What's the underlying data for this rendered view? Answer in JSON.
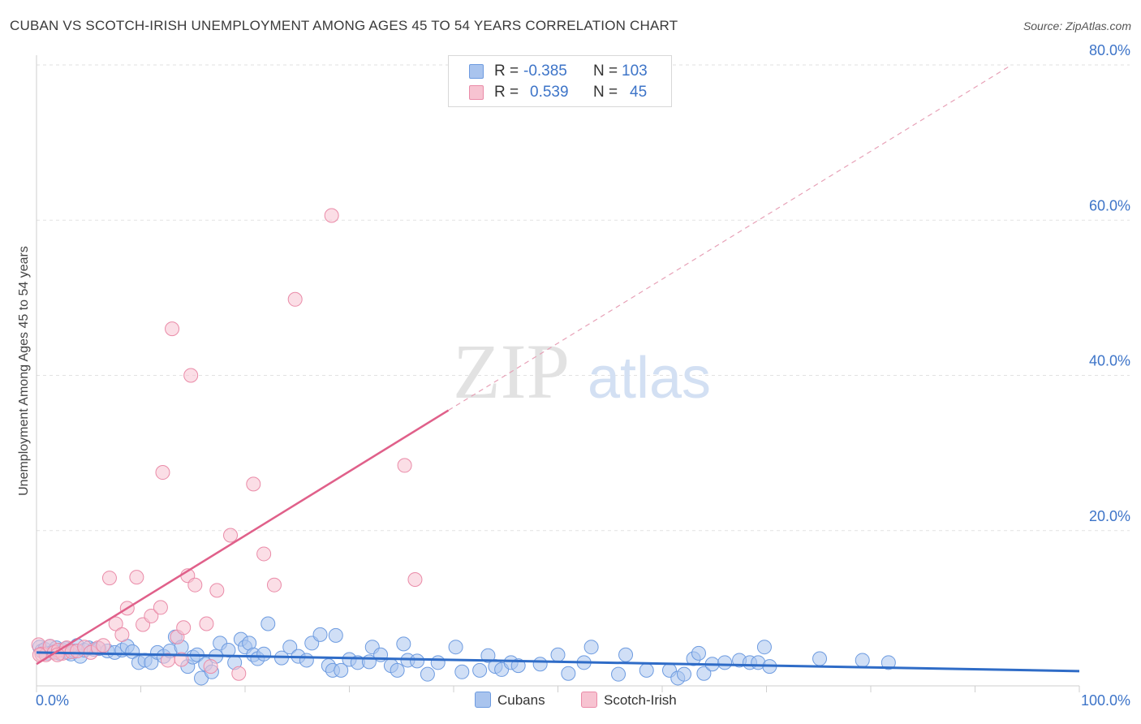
{
  "header": {
    "title": "CUBAN VS SCOTCH-IRISH UNEMPLOYMENT AMONG AGES 45 TO 54 YEARS CORRELATION CHART",
    "source": "Source: ZipAtlas.com"
  },
  "legend": {
    "rows": [
      {
        "r_label": "R =",
        "r_value": "-0.385",
        "n_label": "N =",
        "n_value": "103"
      },
      {
        "r_label": "R =",
        "r_value": "0.539",
        "n_label": "N =",
        "n_value": "45"
      }
    ],
    "bottom": [
      {
        "label": "Cubans"
      },
      {
        "label": "Scotch-Irish"
      }
    ]
  },
  "watermark": {
    "zip": "ZIP",
    "atlas": "atlas"
  },
  "colors": {
    "blue_fill": "#a9c4ee",
    "blue_stroke": "#6d9be0",
    "blue_line": "#2f6cc7",
    "pink_fill": "#f7c3d1",
    "pink_stroke": "#ea8ba8",
    "pink_line": "#e0608a",
    "axis_text": "#3d74c8"
  },
  "chart_data": {
    "type": "scatter",
    "title": "CUBAN VS SCOTCH-IRISH UNEMPLOYMENT AMONG AGES 45 TO 54 YEARS CORRELATION CHART",
    "xlabel": "",
    "ylabel": "Unemployment Among Ages 45 to 54 years",
    "xlim": [
      0,
      100
    ],
    "ylim": [
      0,
      80
    ],
    "x_tick_labels": [
      "0.0%",
      "100.0%"
    ],
    "y_ticks": [
      20,
      40,
      60,
      80
    ],
    "y_tick_labels": [
      "20.0%",
      "40.0%",
      "60.0%",
      "80.0%"
    ],
    "grid": true,
    "series": [
      {
        "name": "Cubans",
        "R": -0.385,
        "N": 103,
        "trend": {
          "x0": 0,
          "y0": 4.3,
          "x1": 100,
          "y1": 1.9
        },
        "points": [
          [
            0.3,
            5.0
          ],
          [
            0.5,
            4.5
          ],
          [
            0.8,
            4.7
          ],
          [
            1.0,
            4.2
          ],
          [
            1.3,
            5.1
          ],
          [
            1.6,
            4.4
          ],
          [
            1.9,
            4.9
          ],
          [
            2.2,
            4.2
          ],
          [
            2.5,
            4.6
          ],
          [
            2.8,
            4.8
          ],
          [
            3.0,
            4.3
          ],
          [
            3.3,
            4.1
          ],
          [
            3.6,
            4.5
          ],
          [
            3.9,
            5.2
          ],
          [
            4.2,
            3.8
          ],
          [
            4.6,
            4.6
          ],
          [
            5.0,
            4.9
          ],
          [
            5.5,
            4.7
          ],
          [
            6.0,
            4.8
          ],
          [
            6.8,
            4.5
          ],
          [
            7.5,
            4.3
          ],
          [
            8.2,
            4.6
          ],
          [
            8.7,
            5.1
          ],
          [
            9.2,
            4.4
          ],
          [
            9.8,
            3.0
          ],
          [
            10.4,
            3.3
          ],
          [
            11.0,
            3.0
          ],
          [
            11.6,
            4.3
          ],
          [
            12.2,
            3.8
          ],
          [
            12.8,
            4.5
          ],
          [
            13.3,
            6.3
          ],
          [
            13.9,
            5.0
          ],
          [
            14.5,
            2.5
          ],
          [
            15.0,
            3.7
          ],
          [
            15.4,
            4.0
          ],
          [
            15.8,
            1.0
          ],
          [
            16.2,
            2.8
          ],
          [
            16.8,
            1.8
          ],
          [
            17.2,
            3.8
          ],
          [
            17.6,
            5.5
          ],
          [
            18.4,
            4.6
          ],
          [
            19.0,
            3.0
          ],
          [
            19.6,
            6.0
          ],
          [
            20.0,
            5.0
          ],
          [
            20.4,
            5.5
          ],
          [
            20.8,
            4.0
          ],
          [
            21.2,
            3.5
          ],
          [
            21.8,
            4.1
          ],
          [
            22.2,
            8.0
          ],
          [
            23.5,
            3.6
          ],
          [
            24.3,
            5.0
          ],
          [
            25.1,
            3.8
          ],
          [
            25.9,
            3.3
          ],
          [
            26.4,
            5.5
          ],
          [
            27.2,
            6.6
          ],
          [
            28.0,
            2.6
          ],
          [
            28.4,
            2.0
          ],
          [
            28.7,
            6.5
          ],
          [
            29.2,
            2.0
          ],
          [
            30.0,
            3.4
          ],
          [
            30.8,
            3.0
          ],
          [
            31.9,
            3.1
          ],
          [
            32.2,
            5.0
          ],
          [
            33.0,
            4.0
          ],
          [
            34.0,
            2.6
          ],
          [
            34.6,
            2.0
          ],
          [
            35.2,
            5.4
          ],
          [
            35.6,
            3.3
          ],
          [
            36.5,
            3.2
          ],
          [
            37.5,
            1.5
          ],
          [
            38.5,
            3.0
          ],
          [
            40.2,
            5.0
          ],
          [
            40.8,
            1.8
          ],
          [
            42.5,
            2.0
          ],
          [
            43.3,
            3.9
          ],
          [
            44.0,
            2.5
          ],
          [
            44.6,
            2.1
          ],
          [
            45.5,
            3.0
          ],
          [
            46.2,
            2.6
          ],
          [
            48.3,
            2.8
          ],
          [
            50.0,
            4.0
          ],
          [
            51.0,
            1.6
          ],
          [
            52.5,
            3.0
          ],
          [
            53.2,
            5.0
          ],
          [
            55.8,
            1.5
          ],
          [
            56.5,
            4.0
          ],
          [
            58.5,
            2.0
          ],
          [
            60.7,
            2.0
          ],
          [
            61.5,
            1.0
          ],
          [
            62.1,
            1.5
          ],
          [
            63.0,
            3.5
          ],
          [
            63.5,
            4.2
          ],
          [
            64.0,
            1.6
          ],
          [
            64.8,
            2.8
          ],
          [
            66.0,
            3.0
          ],
          [
            67.4,
            3.3
          ],
          [
            68.4,
            3.0
          ],
          [
            69.2,
            3.0
          ],
          [
            69.8,
            5.0
          ],
          [
            70.3,
            2.5
          ],
          [
            75.1,
            3.5
          ],
          [
            79.2,
            3.3
          ],
          [
            81.7,
            3.0
          ]
        ]
      },
      {
        "name": "Scotch-Irish",
        "R": 0.539,
        "N": 45,
        "trend": {
          "x0": 0,
          "y0": 2.8,
          "x1": 39.5,
          "y1": 35.5,
          "dash_to_x": 93.5,
          "dash_to_y": 80
        },
        "points": [
          [
            0.2,
            5.3
          ],
          [
            0.5,
            4.1
          ],
          [
            0.9,
            4.0
          ],
          [
            1.3,
            5.1
          ],
          [
            1.7,
            4.3
          ],
          [
            2.1,
            4.6
          ],
          [
            2.5,
            4.2
          ],
          [
            2.9,
            4.9
          ],
          [
            3.4,
            4.4
          ],
          [
            3.9,
            4.5
          ],
          [
            4.6,
            5.0
          ],
          [
            5.2,
            4.3
          ],
          [
            5.9,
            4.9
          ],
          [
            6.4,
            5.2
          ],
          [
            7.0,
            13.9
          ],
          [
            7.6,
            8.0
          ],
          [
            8.2,
            6.6
          ],
          [
            8.7,
            10.0
          ],
          [
            9.6,
            14.0
          ],
          [
            10.2,
            7.9
          ],
          [
            11.0,
            9.0
          ],
          [
            11.9,
            10.1
          ],
          [
            12.1,
            27.5
          ],
          [
            12.6,
            3.3
          ],
          [
            13.0,
            46.0
          ],
          [
            13.5,
            6.3
          ],
          [
            13.9,
            3.4
          ],
          [
            14.1,
            7.5
          ],
          [
            14.5,
            14.2
          ],
          [
            14.8,
            40.0
          ],
          [
            15.2,
            13.0
          ],
          [
            16.3,
            8.0
          ],
          [
            16.7,
            2.5
          ],
          [
            17.3,
            12.3
          ],
          [
            18.6,
            19.4
          ],
          [
            19.4,
            1.6
          ],
          [
            20.8,
            26.0
          ],
          [
            21.8,
            17.0
          ],
          [
            22.8,
            13.0
          ],
          [
            24.8,
            49.8
          ],
          [
            28.3,
            60.6
          ],
          [
            35.3,
            28.4
          ],
          [
            36.3,
            13.7
          ],
          [
            0.3,
            4.0
          ],
          [
            2.0,
            4.0
          ]
        ]
      }
    ]
  }
}
